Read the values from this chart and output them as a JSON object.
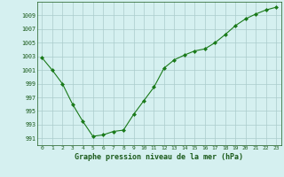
{
  "x": [
    0,
    1,
    2,
    3,
    4,
    5,
    6,
    7,
    8,
    9,
    10,
    11,
    12,
    13,
    14,
    15,
    16,
    17,
    18,
    19,
    20,
    21,
    22,
    23
  ],
  "y": [
    1002.8,
    1001.0,
    999.0,
    996.0,
    993.5,
    991.3,
    991.5,
    992.0,
    992.2,
    994.5,
    996.5,
    998.5,
    1001.3,
    1002.5,
    1003.2,
    1003.8,
    1004.1,
    1005.0,
    1006.2,
    1007.5,
    1008.5,
    1009.2,
    1009.8,
    1010.2
  ],
  "ylim": [
    990,
    1011
  ],
  "yticks": [
    991,
    993,
    995,
    997,
    999,
    1001,
    1003,
    1005,
    1007,
    1009
  ],
  "xticks": [
    0,
    1,
    2,
    3,
    4,
    5,
    6,
    7,
    8,
    9,
    10,
    11,
    12,
    13,
    14,
    15,
    16,
    17,
    18,
    19,
    20,
    21,
    22,
    23
  ],
  "xlabel": "Graphe pression niveau de la mer (hPa)",
  "line_color": "#1a7a1a",
  "marker": "D",
  "marker_size": 2,
  "bg_color": "#d5f0f0",
  "grid_color": "#aacccc",
  "title": ""
}
